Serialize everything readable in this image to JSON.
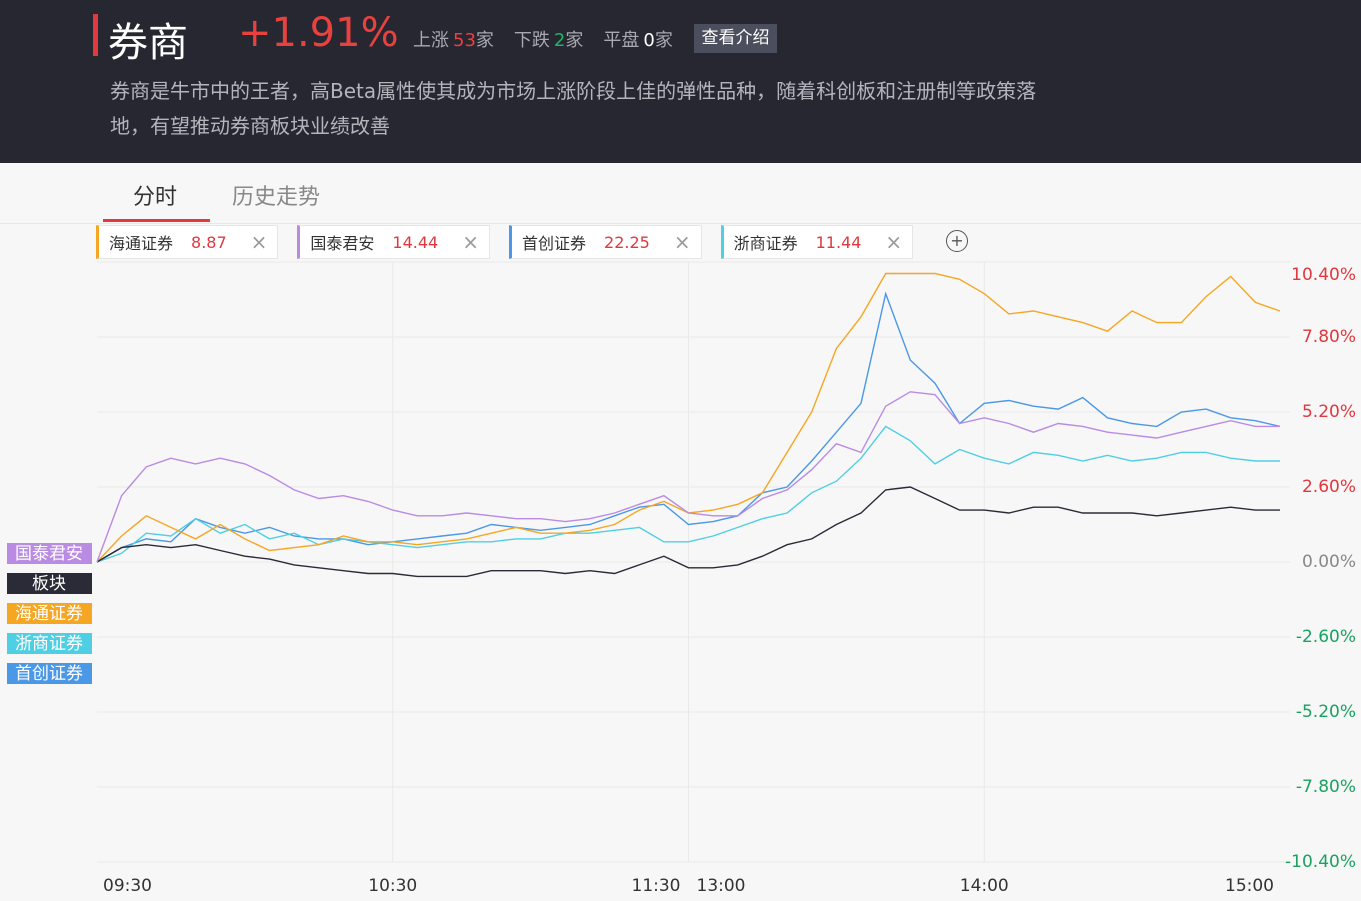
{
  "header": {
    "title": "券商",
    "change": "+1.91%",
    "stats": [
      {
        "label": "上涨",
        "count": 53,
        "unit": "家",
        "color": "#e8413e"
      },
      {
        "label": "下跌",
        "count": 2,
        "unit": "家",
        "color": "#1fb567"
      },
      {
        "label": "平盘",
        "count": 0,
        "unit": "家",
        "color": "#ffffff"
      }
    ],
    "button": "查看介绍",
    "description": "券商是牛市中的王者，高Beta属性使其成为市场上涨阶段上佳的弹性品种，随着科创板和注册制等政策落地，有望推动券商板块业绩改善"
  },
  "tabs": [
    "分时",
    "历史走势"
  ],
  "chips": [
    {
      "name": "海通证券",
      "price": 8.87,
      "color": "#f5a623"
    },
    {
      "name": "国泰君安",
      "price": 14.44,
      "color": "#b98be3"
    },
    {
      "name": "首创证券",
      "price": 22.25,
      "color": "#4a98e6"
    },
    {
      "name": "浙商证券",
      "price": 11.44,
      "color": "#4fcfe3"
    }
  ],
  "chart_data": {
    "type": "line",
    "x": [
      "09:30",
      "09:35",
      "09:40",
      "09:45",
      "09:50",
      "09:55",
      "10:00",
      "10:05",
      "10:10",
      "10:15",
      "10:20",
      "10:25",
      "10:30",
      "10:35",
      "10:40",
      "10:45",
      "10:50",
      "10:55",
      "11:00",
      "11:05",
      "11:10",
      "11:15",
      "11:20",
      "11:25",
      "11:30",
      "13:05",
      "13:10",
      "13:15",
      "13:20",
      "13:25",
      "13:30",
      "13:35",
      "13:40",
      "13:45",
      "13:50",
      "13:55",
      "14:00",
      "14:05",
      "14:10",
      "14:15",
      "14:20",
      "14:25",
      "14:30",
      "14:35",
      "14:40",
      "14:45",
      "14:50",
      "14:55",
      "15:00"
    ],
    "xlim": [
      "09:30",
      "15:00"
    ],
    "xticks": [
      "09:30",
      "10:30",
      "11:30",
      "13:00",
      "14:00",
      "15:00"
    ],
    "ylim": [
      -10.4,
      10.4
    ],
    "yticks": [
      {
        "value": -10.4,
        "label": "-10.40%"
      },
      {
        "value": -7.8,
        "label": "-7.80%"
      },
      {
        "value": -5.2,
        "label": "-5.20%"
      },
      {
        "value": -2.6,
        "label": "-2.60%"
      },
      {
        "value": 0,
        "label": "0.00%"
      },
      {
        "value": 2.6,
        "label": "2.60%"
      },
      {
        "value": 5.2,
        "label": "5.20%"
      },
      {
        "value": 7.8,
        "label": "7.80%"
      },
      {
        "value": 10.4,
        "label": "10.40%"
      }
    ],
    "grid": true,
    "series": [
      {
        "name": "国泰君安",
        "color": "#b98be3",
        "values": [
          0,
          2.3,
          3.3,
          3.6,
          3.4,
          3.6,
          3.4,
          3.0,
          2.5,
          2.2,
          2.3,
          2.1,
          1.8,
          1.6,
          1.6,
          1.7,
          1.6,
          1.5,
          1.5,
          1.4,
          1.5,
          1.7,
          2.0,
          2.3,
          1.7,
          1.6,
          1.6,
          2.2,
          2.5,
          3.2,
          4.1,
          3.8,
          5.4,
          5.9,
          5.8,
          4.8,
          5.0,
          4.8,
          4.5,
          4.8,
          4.7,
          4.5,
          4.4,
          4.3,
          4.5,
          4.7,
          4.9,
          4.7,
          4.7
        ]
      },
      {
        "name": "板块",
        "color": "#2a2b36",
        "values": [
          0,
          0.5,
          0.6,
          0.5,
          0.6,
          0.4,
          0.2,
          0.1,
          -0.1,
          -0.2,
          -0.3,
          -0.4,
          -0.4,
          -0.5,
          -0.5,
          -0.5,
          -0.3,
          -0.3,
          -0.3,
          -0.4,
          -0.3,
          -0.4,
          -0.1,
          0.2,
          -0.2,
          -0.2,
          -0.1,
          0.2,
          0.6,
          0.8,
          1.3,
          1.7,
          2.5,
          2.6,
          2.2,
          1.8,
          1.8,
          1.7,
          1.9,
          1.9,
          1.7,
          1.7,
          1.7,
          1.6,
          1.7,
          1.8,
          1.9,
          1.8,
          1.8
        ]
      },
      {
        "name": "海通证券",
        "color": "#f5a623",
        "values": [
          0,
          0.9,
          1.6,
          1.2,
          0.8,
          1.3,
          0.8,
          0.4,
          0.5,
          0.6,
          0.9,
          0.7,
          0.7,
          0.6,
          0.7,
          0.8,
          1.0,
          1.2,
          1.0,
          1.0,
          1.1,
          1.3,
          1.8,
          2.1,
          1.7,
          1.8,
          2.0,
          2.4,
          3.8,
          5.2,
          7.4,
          8.5,
          10.0,
          10.0,
          10.0,
          9.8,
          9.3,
          8.6,
          8.7,
          8.5,
          8.3,
          8.0,
          8.7,
          8.3,
          8.3,
          9.2,
          9.9,
          9.0,
          8.7
        ]
      },
      {
        "name": "浙商证券",
        "color": "#4fcfe3",
        "values": [
          0,
          0.3,
          1.0,
          0.9,
          1.5,
          1.0,
          1.3,
          0.8,
          1.0,
          0.6,
          0.8,
          0.7,
          0.6,
          0.5,
          0.6,
          0.7,
          0.7,
          0.8,
          0.8,
          1.0,
          1.0,
          1.1,
          1.2,
          0.7,
          0.7,
          0.9,
          1.2,
          1.5,
          1.7,
          2.4,
          2.8,
          3.6,
          4.7,
          4.2,
          3.4,
          3.9,
          3.6,
          3.4,
          3.8,
          3.7,
          3.5,
          3.7,
          3.5,
          3.6,
          3.8,
          3.8,
          3.6,
          3.5,
          3.5
        ]
      },
      {
        "name": "首创证券",
        "color": "#4a98e6",
        "values": [
          0,
          0.5,
          0.8,
          0.7,
          1.5,
          1.2,
          1.0,
          1.2,
          0.9,
          0.8,
          0.8,
          0.6,
          0.7,
          0.8,
          0.9,
          1.0,
          1.3,
          1.2,
          1.1,
          1.2,
          1.3,
          1.6,
          1.9,
          2.0,
          1.3,
          1.4,
          1.6,
          2.4,
          2.6,
          3.5,
          4.5,
          5.5,
          9.3,
          7.0,
          6.2,
          4.8,
          5.5,
          5.6,
          5.4,
          5.3,
          5.7,
          5.0,
          4.8,
          4.7,
          5.2,
          5.3,
          5.0,
          4.9,
          4.7
        ]
      }
    ]
  }
}
